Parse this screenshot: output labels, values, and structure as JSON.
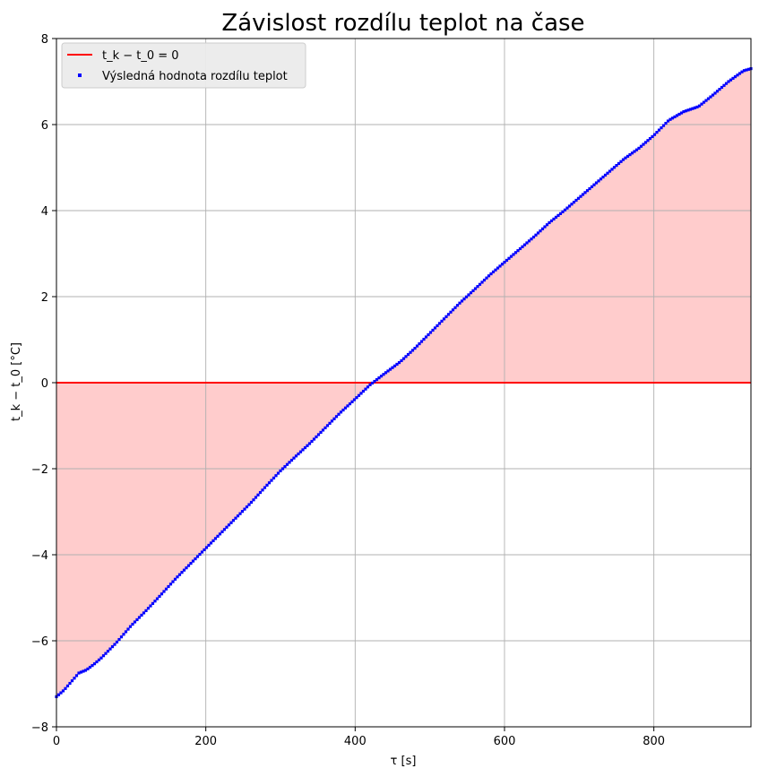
{
  "chart_data": {
    "type": "scatter",
    "title": "Závislost rozdílu teplot na čase",
    "xlabel": "τ [s]",
    "ylabel": "t_k − t_0 [°C]",
    "xlim": [
      0,
      930
    ],
    "ylim": [
      -8,
      8
    ],
    "xticks": [
      0,
      200,
      400,
      600,
      800
    ],
    "xtick_labels": [
      "0",
      "200",
      "400",
      "600",
      "800"
    ],
    "yticks": [
      -8,
      -6,
      -4,
      -2,
      0,
      2,
      4,
      6,
      8
    ],
    "ytick_labels": [
      "−8",
      "−6",
      "−4",
      "−2",
      "0",
      "2",
      "4",
      "6",
      "8"
    ],
    "grid": true,
    "legend_position": "top-left",
    "reference_line": {
      "label": "t_k − t_0 = 0",
      "y": 0,
      "color": "#ff0000"
    },
    "fill": {
      "between": "series and zero line",
      "color": "#ffcccc"
    },
    "series": [
      {
        "name": "Výsledná hodnota rozdílu teplot",
        "color": "#0000ff",
        "marker": "square",
        "x": [
          0,
          10,
          20,
          30,
          40,
          50,
          60,
          80,
          100,
          120,
          140,
          160,
          180,
          200,
          220,
          240,
          260,
          280,
          300,
          320,
          340,
          360,
          380,
          400,
          420,
          440,
          460,
          480,
          500,
          520,
          540,
          560,
          580,
          600,
          620,
          640,
          660,
          680,
          700,
          720,
          740,
          760,
          780,
          800,
          820,
          840,
          860,
          880,
          900,
          920,
          930
        ],
        "y": [
          -7.3,
          -7.15,
          -6.95,
          -6.75,
          -6.68,
          -6.55,
          -6.4,
          -6.05,
          -5.65,
          -5.3,
          -4.93,
          -4.55,
          -4.2,
          -3.85,
          -3.5,
          -3.15,
          -2.8,
          -2.42,
          -2.05,
          -1.72,
          -1.4,
          -1.05,
          -0.7,
          -0.38,
          -0.05,
          0.22,
          0.48,
          0.8,
          1.15,
          1.5,
          1.85,
          2.17,
          2.5,
          2.8,
          3.1,
          3.4,
          3.72,
          4.0,
          4.3,
          4.6,
          4.9,
          5.2,
          5.45,
          5.75,
          6.1,
          6.3,
          6.42,
          6.7,
          7.0,
          7.25,
          7.3
        ]
      }
    ]
  }
}
